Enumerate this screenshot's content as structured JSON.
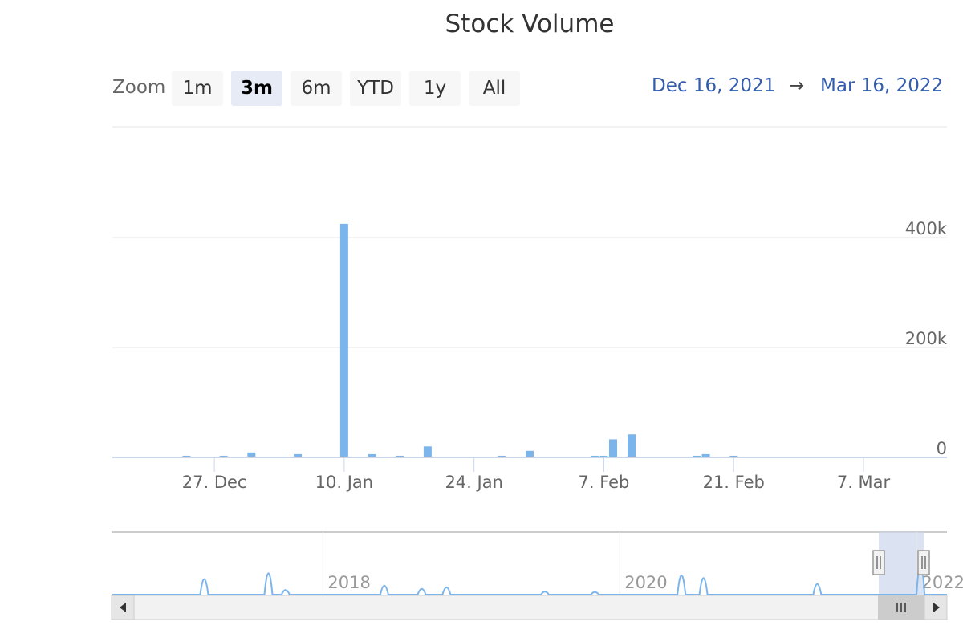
{
  "title": "Stock Volume",
  "range_selector": {
    "zoom_label": "Zoom",
    "buttons": [
      "1m",
      "3m",
      "6m",
      "YTD",
      "1y",
      "All"
    ],
    "selected": "3m",
    "from": "Dec 16, 2021",
    "arrow": "→",
    "to": "Mar 16, 2022"
  },
  "colors": {
    "series": "#7cb5ec",
    "range_text": "#335cad",
    "navigator_mask": "#ccd6eb"
  },
  "chart_data": {
    "type": "bar",
    "title": "Stock Volume",
    "xlabel": "",
    "ylabel": "",
    "xlim": [
      "2021-12-16",
      "2022-03-16"
    ],
    "ylim": [
      0,
      430000
    ],
    "x_ticks": [
      "27. Dec",
      "10. Jan",
      "24. Jan",
      "7. Feb",
      "21. Feb",
      "7. Mar"
    ],
    "x_tick_dates": [
      "2021-12-27",
      "2022-01-10",
      "2022-01-24",
      "2022-02-07",
      "2022-02-21",
      "2022-03-07"
    ],
    "y_ticks": [
      "0",
      "200k",
      "400k"
    ],
    "y_tick_values": [
      0,
      200000,
      400000
    ],
    "grid": true,
    "series": [
      {
        "x": [
          "2021-12-24",
          "2021-12-28",
          "2021-12-31",
          "2022-01-05",
          "2022-01-10",
          "2022-01-13",
          "2022-01-16",
          "2022-01-19",
          "2022-01-27",
          "2022-01-30",
          "2022-02-06",
          "2022-02-07",
          "2022-02-08",
          "2022-02-10",
          "2022-02-17",
          "2022-02-18",
          "2022-02-21"
        ],
        "values": [
          3000,
          3000,
          9000,
          6000,
          425000,
          6000,
          3000,
          20000,
          3000,
          12000,
          3000,
          3000,
          33000,
          42000,
          3000,
          6000,
          3000
        ]
      }
    ],
    "navigator": {
      "x_labels": [
        "2018",
        "2020",
        "2022"
      ],
      "spike_dates": [
        "2017-03-15",
        "2017-08-20",
        "2017-10-01",
        "2018-06-01",
        "2018-09-01",
        "2018-11-01",
        "2019-07-01",
        "2019-11-01",
        "2020-06-01",
        "2020-07-25",
        "2021-05-01",
        "2022-01-10"
      ],
      "spike_values": [
        200000,
        285000,
        45000,
        105000,
        60000,
        80000,
        20000,
        15000,
        255000,
        215000,
        130000,
        425000
      ]
    }
  }
}
